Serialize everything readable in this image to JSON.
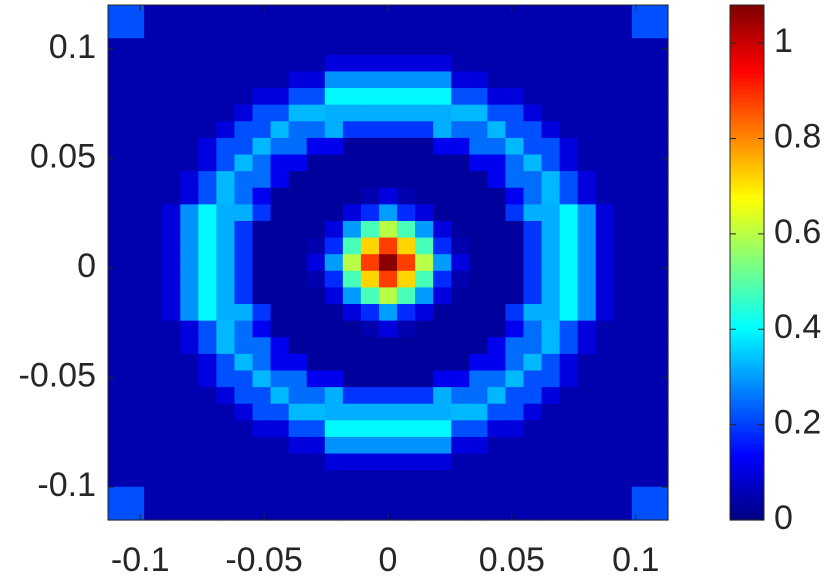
{
  "chart_data": {
    "type": "heatmap",
    "colormap": "jet",
    "xlim": [
      -0.113,
      0.113
    ],
    "ylim": [
      -0.115,
      0.12
    ],
    "clim": [
      0,
      1.08
    ],
    "xticks": [
      -0.1,
      -0.05,
      0,
      0.05,
      0.1
    ],
    "yticks": [
      -0.1,
      -0.05,
      0,
      0.05,
      0.1
    ],
    "cticks": [
      0,
      0.2,
      0.4,
      0.6,
      0.8,
      1
    ],
    "z": [
      [
        0.22,
        0.22,
        0.05,
        0.05,
        0.05,
        0.05,
        0.05,
        0.05,
        0.05,
        0.05,
        0.05,
        0.05,
        0.05,
        0.05,
        0.05,
        0.05,
        0.05,
        0.05,
        0.05,
        0.05,
        0.05,
        0.05,
        0.05,
        0.05,
        0.05,
        0.05,
        0.05,
        0.05,
        0.05,
        0.22,
        0.22
      ],
      [
        0.22,
        0.22,
        0.05,
        0.05,
        0.05,
        0.05,
        0.05,
        0.05,
        0.05,
        0.05,
        0.05,
        0.05,
        0.05,
        0.05,
        0.05,
        0.05,
        0.05,
        0.05,
        0.05,
        0.05,
        0.05,
        0.05,
        0.05,
        0.05,
        0.05,
        0.05,
        0.05,
        0.05,
        0.05,
        0.22,
        0.22
      ],
      [
        0.05,
        0.05,
        0.05,
        0.05,
        0.05,
        0.05,
        0.05,
        0.05,
        0.05,
        0.05,
        0.05,
        0.05,
        0.05,
        0.05,
        0.05,
        0.05,
        0.05,
        0.05,
        0.05,
        0.05,
        0.05,
        0.05,
        0.05,
        0.05,
        0.05,
        0.05,
        0.05,
        0.05,
        0.05,
        0.05,
        0.05
      ],
      [
        0.05,
        0.05,
        0.05,
        0.05,
        0.05,
        0.05,
        0.05,
        0.05,
        0.05,
        0.05,
        0.05,
        0.05,
        0.1,
        0.1,
        0.1,
        0.1,
        0.1,
        0.1,
        0.1,
        0.05,
        0.05,
        0.05,
        0.05,
        0.05,
        0.05,
        0.05,
        0.05,
        0.05,
        0.05,
        0.05,
        0.05
      ],
      [
        0.05,
        0.05,
        0.05,
        0.05,
        0.05,
        0.05,
        0.05,
        0.05,
        0.05,
        0.05,
        0.1,
        0.1,
        0.29,
        0.29,
        0.29,
        0.29,
        0.29,
        0.29,
        0.29,
        0.1,
        0.1,
        0.05,
        0.05,
        0.05,
        0.05,
        0.05,
        0.05,
        0.05,
        0.05,
        0.05,
        0.05
      ],
      [
        0.05,
        0.05,
        0.05,
        0.05,
        0.05,
        0.05,
        0.05,
        0.05,
        0.1,
        0.1,
        0.22,
        0.22,
        0.4,
        0.4,
        0.4,
        0.4,
        0.4,
        0.4,
        0.4,
        0.22,
        0.22,
        0.1,
        0.1,
        0.05,
        0.05,
        0.05,
        0.05,
        0.05,
        0.05,
        0.05,
        0.05
      ],
      [
        0.05,
        0.05,
        0.05,
        0.05,
        0.05,
        0.05,
        0.05,
        0.1,
        0.22,
        0.22,
        0.33,
        0.33,
        0.32,
        0.32,
        0.32,
        0.32,
        0.32,
        0.32,
        0.32,
        0.33,
        0.33,
        0.22,
        0.22,
        0.1,
        0.05,
        0.05,
        0.05,
        0.05,
        0.05,
        0.05,
        0.05
      ],
      [
        0.05,
        0.05,
        0.05,
        0.05,
        0.05,
        0.05,
        0.1,
        0.22,
        0.22,
        0.33,
        0.25,
        0.25,
        0.32,
        0.19,
        0.19,
        0.19,
        0.19,
        0.19,
        0.32,
        0.25,
        0.25,
        0.33,
        0.22,
        0.22,
        0.1,
        0.05,
        0.05,
        0.05,
        0.05,
        0.05,
        0.05
      ],
      [
        0.05,
        0.05,
        0.05,
        0.05,
        0.05,
        0.1,
        0.22,
        0.22,
        0.33,
        0.25,
        0.25,
        0.12,
        0.12,
        0.03,
        0.03,
        0.03,
        0.03,
        0.03,
        0.12,
        0.12,
        0.25,
        0.25,
        0.33,
        0.22,
        0.22,
        0.1,
        0.05,
        0.05,
        0.05,
        0.05,
        0.05
      ],
      [
        0.05,
        0.05,
        0.05,
        0.05,
        0.05,
        0.1,
        0.22,
        0.33,
        0.25,
        0.12,
        0.12,
        0.03,
        0.03,
        0.03,
        0.03,
        0.03,
        0.03,
        0.03,
        0.03,
        0.03,
        0.12,
        0.12,
        0.25,
        0.33,
        0.22,
        0.1,
        0.05,
        0.05,
        0.05,
        0.05,
        0.05
      ],
      [
        0.05,
        0.05,
        0.05,
        0.05,
        0.1,
        0.22,
        0.33,
        0.25,
        0.25,
        0.12,
        0.03,
        0.03,
        0.03,
        0.03,
        0.03,
        0.03,
        0.03,
        0.03,
        0.03,
        0.03,
        0.03,
        0.12,
        0.25,
        0.25,
        0.33,
        0.22,
        0.1,
        0.05,
        0.05,
        0.05,
        0.05
      ],
      [
        0.05,
        0.05,
        0.05,
        0.05,
        0.1,
        0.22,
        0.33,
        0.25,
        0.12,
        0.03,
        0.03,
        0.03,
        0.03,
        0.03,
        0.05,
        0.1,
        0.05,
        0.03,
        0.03,
        0.03,
        0.03,
        0.03,
        0.12,
        0.25,
        0.33,
        0.22,
        0.1,
        0.05,
        0.05,
        0.05,
        0.05
      ],
      [
        0.05,
        0.05,
        0.05,
        0.1,
        0.29,
        0.4,
        0.32,
        0.32,
        0.19,
        0.03,
        0.03,
        0.03,
        0.03,
        0.1,
        0.18,
        0.3,
        0.18,
        0.1,
        0.03,
        0.03,
        0.03,
        0.03,
        0.19,
        0.32,
        0.32,
        0.4,
        0.29,
        0.1,
        0.05,
        0.05,
        0.05
      ],
      [
        0.05,
        0.05,
        0.05,
        0.1,
        0.29,
        0.4,
        0.32,
        0.19,
        0.03,
        0.03,
        0.03,
        0.03,
        0.1,
        0.3,
        0.48,
        0.6,
        0.48,
        0.3,
        0.1,
        0.03,
        0.03,
        0.03,
        0.03,
        0.19,
        0.32,
        0.4,
        0.29,
        0.1,
        0.05,
        0.05,
        0.05
      ],
      [
        0.05,
        0.05,
        0.05,
        0.1,
        0.29,
        0.4,
        0.32,
        0.19,
        0.03,
        0.03,
        0.03,
        0.05,
        0.18,
        0.48,
        0.72,
        0.88,
        0.72,
        0.48,
        0.18,
        0.05,
        0.03,
        0.03,
        0.03,
        0.19,
        0.32,
        0.4,
        0.29,
        0.1,
        0.05,
        0.05,
        0.05
      ],
      [
        0.05,
        0.05,
        0.05,
        0.1,
        0.29,
        0.4,
        0.32,
        0.19,
        0.03,
        0.03,
        0.03,
        0.1,
        0.3,
        0.6,
        0.88,
        1.07,
        0.88,
        0.6,
        0.3,
        0.1,
        0.03,
        0.03,
        0.03,
        0.19,
        0.32,
        0.4,
        0.29,
        0.1,
        0.05,
        0.05,
        0.05
      ],
      [
        0.05,
        0.05,
        0.05,
        0.1,
        0.29,
        0.4,
        0.32,
        0.19,
        0.03,
        0.03,
        0.03,
        0.05,
        0.18,
        0.48,
        0.72,
        0.88,
        0.72,
        0.48,
        0.18,
        0.05,
        0.03,
        0.03,
        0.03,
        0.19,
        0.32,
        0.4,
        0.29,
        0.1,
        0.05,
        0.05,
        0.05
      ],
      [
        0.05,
        0.05,
        0.05,
        0.1,
        0.29,
        0.4,
        0.32,
        0.19,
        0.03,
        0.03,
        0.03,
        0.03,
        0.1,
        0.3,
        0.48,
        0.6,
        0.48,
        0.3,
        0.1,
        0.03,
        0.03,
        0.03,
        0.03,
        0.19,
        0.32,
        0.4,
        0.29,
        0.1,
        0.05,
        0.05,
        0.05
      ],
      [
        0.05,
        0.05,
        0.05,
        0.1,
        0.29,
        0.4,
        0.32,
        0.32,
        0.19,
        0.03,
        0.03,
        0.03,
        0.03,
        0.1,
        0.18,
        0.3,
        0.18,
        0.1,
        0.03,
        0.03,
        0.03,
        0.03,
        0.19,
        0.32,
        0.32,
        0.4,
        0.29,
        0.1,
        0.05,
        0.05,
        0.05
      ],
      [
        0.05,
        0.05,
        0.05,
        0.05,
        0.1,
        0.22,
        0.33,
        0.25,
        0.12,
        0.03,
        0.03,
        0.03,
        0.03,
        0.03,
        0.05,
        0.1,
        0.05,
        0.03,
        0.03,
        0.03,
        0.03,
        0.03,
        0.12,
        0.25,
        0.33,
        0.22,
        0.1,
        0.05,
        0.05,
        0.05,
        0.05
      ],
      [
        0.05,
        0.05,
        0.05,
        0.05,
        0.1,
        0.22,
        0.33,
        0.25,
        0.25,
        0.12,
        0.03,
        0.03,
        0.03,
        0.03,
        0.03,
        0.03,
        0.03,
        0.03,
        0.03,
        0.03,
        0.03,
        0.12,
        0.25,
        0.25,
        0.33,
        0.22,
        0.1,
        0.05,
        0.05,
        0.05,
        0.05
      ],
      [
        0.05,
        0.05,
        0.05,
        0.05,
        0.05,
        0.1,
        0.22,
        0.33,
        0.25,
        0.12,
        0.12,
        0.03,
        0.03,
        0.03,
        0.03,
        0.03,
        0.03,
        0.03,
        0.03,
        0.03,
        0.12,
        0.12,
        0.25,
        0.33,
        0.22,
        0.1,
        0.05,
        0.05,
        0.05,
        0.05,
        0.05
      ],
      [
        0.05,
        0.05,
        0.05,
        0.05,
        0.05,
        0.1,
        0.22,
        0.22,
        0.33,
        0.25,
        0.25,
        0.12,
        0.12,
        0.03,
        0.03,
        0.03,
        0.03,
        0.03,
        0.12,
        0.12,
        0.25,
        0.25,
        0.33,
        0.22,
        0.22,
        0.1,
        0.05,
        0.05,
        0.05,
        0.05,
        0.05
      ],
      [
        0.05,
        0.05,
        0.05,
        0.05,
        0.05,
        0.05,
        0.1,
        0.22,
        0.22,
        0.33,
        0.25,
        0.25,
        0.32,
        0.19,
        0.19,
        0.19,
        0.19,
        0.19,
        0.32,
        0.25,
        0.25,
        0.33,
        0.22,
        0.22,
        0.1,
        0.05,
        0.05,
        0.05,
        0.05,
        0.05,
        0.05
      ],
      [
        0.05,
        0.05,
        0.05,
        0.05,
        0.05,
        0.05,
        0.05,
        0.1,
        0.22,
        0.22,
        0.33,
        0.33,
        0.32,
        0.32,
        0.32,
        0.32,
        0.32,
        0.32,
        0.32,
        0.33,
        0.33,
        0.22,
        0.22,
        0.1,
        0.05,
        0.05,
        0.05,
        0.05,
        0.05,
        0.05,
        0.05
      ],
      [
        0.05,
        0.05,
        0.05,
        0.05,
        0.05,
        0.05,
        0.05,
        0.05,
        0.1,
        0.1,
        0.22,
        0.22,
        0.4,
        0.4,
        0.4,
        0.4,
        0.4,
        0.4,
        0.4,
        0.22,
        0.22,
        0.1,
        0.1,
        0.05,
        0.05,
        0.05,
        0.05,
        0.05,
        0.05,
        0.05,
        0.05
      ],
      [
        0.05,
        0.05,
        0.05,
        0.05,
        0.05,
        0.05,
        0.05,
        0.05,
        0.05,
        0.05,
        0.1,
        0.1,
        0.29,
        0.29,
        0.29,
        0.29,
        0.29,
        0.29,
        0.29,
        0.1,
        0.1,
        0.05,
        0.05,
        0.05,
        0.05,
        0.05,
        0.05,
        0.05,
        0.05,
        0.05,
        0.05
      ],
      [
        0.05,
        0.05,
        0.05,
        0.05,
        0.05,
        0.05,
        0.05,
        0.05,
        0.05,
        0.05,
        0.05,
        0.05,
        0.1,
        0.1,
        0.1,
        0.1,
        0.1,
        0.1,
        0.1,
        0.05,
        0.05,
        0.05,
        0.05,
        0.05,
        0.05,
        0.05,
        0.05,
        0.05,
        0.05,
        0.05,
        0.05
      ],
      [
        0.05,
        0.05,
        0.05,
        0.05,
        0.05,
        0.05,
        0.05,
        0.05,
        0.05,
        0.05,
        0.05,
        0.05,
        0.05,
        0.05,
        0.05,
        0.05,
        0.05,
        0.05,
        0.05,
        0.05,
        0.05,
        0.05,
        0.05,
        0.05,
        0.05,
        0.05,
        0.05,
        0.05,
        0.05,
        0.05,
        0.05
      ],
      [
        0.22,
        0.22,
        0.05,
        0.05,
        0.05,
        0.05,
        0.05,
        0.05,
        0.05,
        0.05,
        0.05,
        0.05,
        0.05,
        0.05,
        0.05,
        0.05,
        0.05,
        0.05,
        0.05,
        0.05,
        0.05,
        0.05,
        0.05,
        0.05,
        0.05,
        0.05,
        0.05,
        0.05,
        0.05,
        0.22,
        0.22
      ],
      [
        0.22,
        0.22,
        0.05,
        0.05,
        0.05,
        0.05,
        0.05,
        0.05,
        0.05,
        0.05,
        0.05,
        0.05,
        0.05,
        0.05,
        0.05,
        0.05,
        0.05,
        0.05,
        0.05,
        0.05,
        0.05,
        0.05,
        0.05,
        0.05,
        0.05,
        0.05,
        0.05,
        0.05,
        0.05,
        0.22,
        0.22
      ]
    ]
  }
}
